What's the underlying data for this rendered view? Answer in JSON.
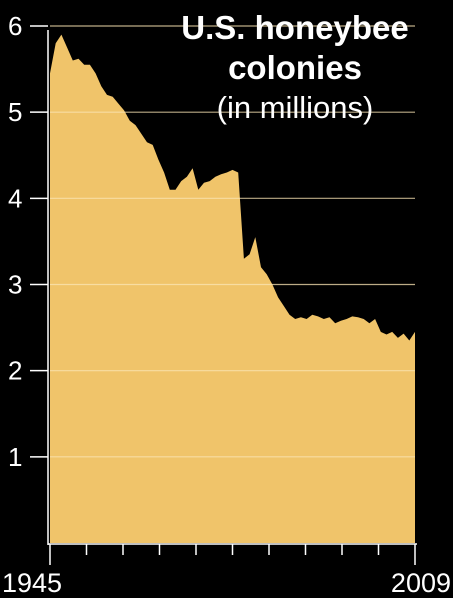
{
  "chart_data": {
    "type": "area",
    "title": "U.S. honeybee colonies",
    "subtitle": "(in millions)",
    "xlabel": "",
    "ylabel": "",
    "x_tick_labels": [
      "1945",
      "2009"
    ],
    "y_ticks": [
      1,
      2,
      3,
      4,
      5,
      6
    ],
    "xlim": [
      1945,
      2009
    ],
    "ylim": [
      0,
      6
    ],
    "grid": true,
    "colors": {
      "fill": "#F0C46A",
      "background": "#000000",
      "text": "#FFFFFF",
      "grid": "#FBE6B5",
      "axis": "#FFFFFF"
    },
    "series": [
      {
        "x": [
          1945,
          1946,
          1947,
          1948,
          1949,
          1950,
          1951,
          1952,
          1953,
          1954,
          1955,
          1956,
          1957,
          1958,
          1959,
          1960,
          1961,
          1962,
          1963,
          1964,
          1965,
          1966,
          1967,
          1968,
          1969,
          1970,
          1971,
          1972,
          1973,
          1974,
          1975,
          1976,
          1977,
          1978,
          1979,
          1980,
          1981,
          1982,
          1983,
          1984,
          1985,
          1986,
          1987,
          1988,
          1989,
          1990,
          1991,
          1992,
          1993,
          1994,
          1995,
          1996,
          1997,
          1998,
          1999,
          2000,
          2001,
          2002,
          2003,
          2004,
          2005,
          2006,
          2007,
          2008,
          2009
        ],
        "values": [
          5.45,
          5.8,
          5.9,
          5.75,
          5.6,
          5.62,
          5.55,
          5.55,
          5.45,
          5.3,
          5.2,
          5.18,
          5.1,
          5.02,
          4.9,
          4.85,
          4.75,
          4.65,
          4.62,
          4.45,
          4.3,
          4.1,
          4.1,
          4.2,
          4.25,
          4.35,
          4.1,
          4.18,
          4.2,
          4.25,
          4.28,
          4.3,
          4.33,
          4.3,
          3.3,
          3.35,
          3.55,
          3.2,
          3.12,
          3.0,
          2.85,
          2.75,
          2.65,
          2.6,
          2.62,
          2.6,
          2.65,
          2.63,
          2.6,
          2.62,
          2.55,
          2.58,
          2.6,
          2.63,
          2.62,
          2.6,
          2.55,
          2.6,
          2.45,
          2.42,
          2.45,
          2.38,
          2.43,
          2.35,
          2.45
        ]
      }
    ]
  }
}
